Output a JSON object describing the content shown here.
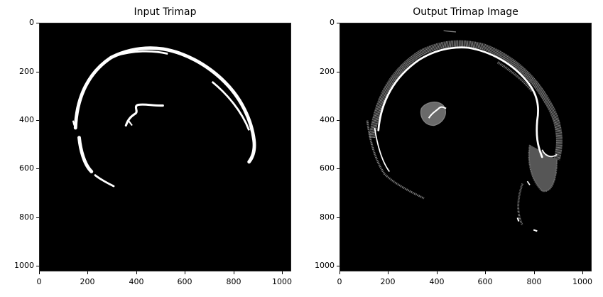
{
  "panels": [
    {
      "title": "Input Trimap",
      "yticks": [
        "0",
        "200",
        "400",
        "600",
        "800",
        "1000"
      ],
      "xticks": [
        "0",
        "200",
        "400",
        "600",
        "800",
        "1000"
      ]
    },
    {
      "title": "Output Trimap Image",
      "yticks": [
        "0",
        "200",
        "400",
        "600",
        "800",
        "1000"
      ],
      "xticks": [
        "0",
        "200",
        "400",
        "600",
        "800",
        "1000"
      ]
    }
  ],
  "colors": {
    "background": "#000000",
    "foreground": "#ffffff",
    "unknown": "#808080"
  }
}
